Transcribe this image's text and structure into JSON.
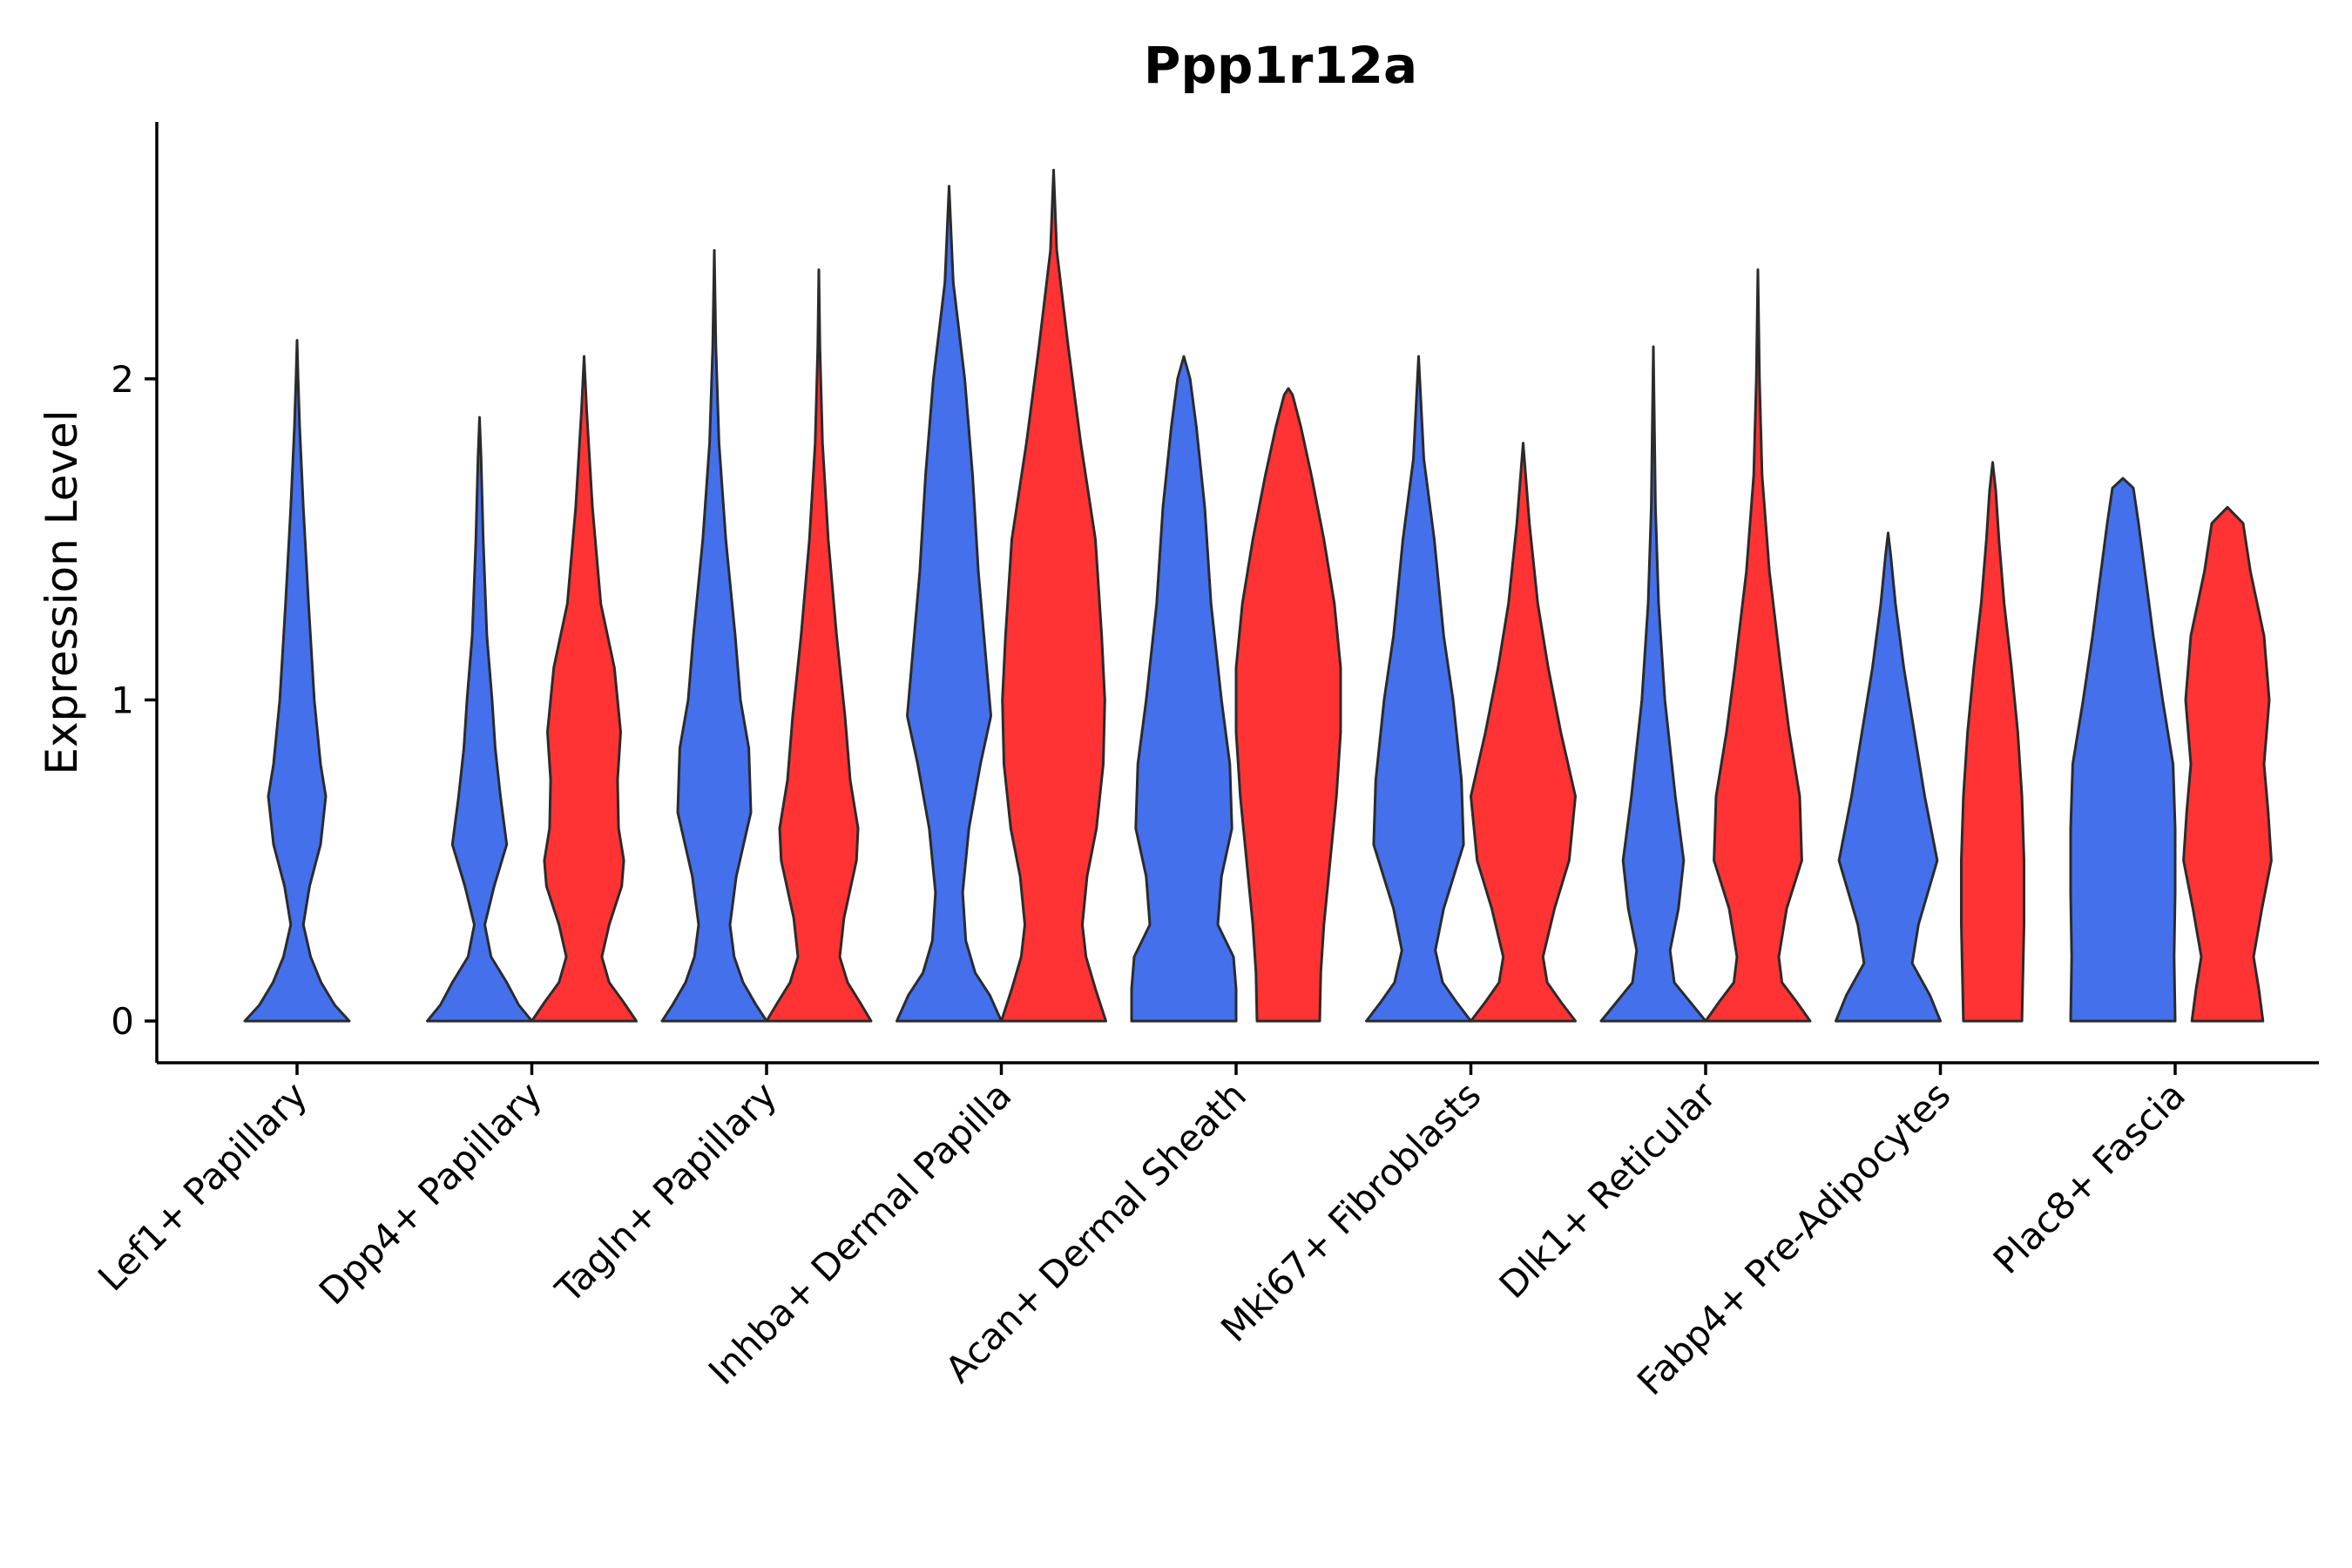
{
  "chart_data": {
    "type": "violin",
    "title": "Ppp1r12a",
    "xlabel": "",
    "ylabel": "Expression Level",
    "ylim": [
      -0.13,
      2.8
    ],
    "yticks": [
      0,
      1,
      2
    ],
    "grid": false,
    "legend": "none",
    "colors": {
      "blue": "#4470EC",
      "red": "#FF3333"
    },
    "categories": [
      "Lef1+ Papillary",
      "Dpp4+ Papillary",
      "Tagln+ Papillary",
      "Inhba+ Dermal Papilla",
      "Acan+ Dermal Sheath",
      "Mki67+ Fibroblasts",
      "Dlk1+ Reticular",
      "Fabp4+ Pre-Adipocytes",
      "Plac8+ Fascia"
    ],
    "series": [
      {
        "name": "blue",
        "color": "#4470EC",
        "max": [
          2.12,
          1.88,
          2.4,
          2.6,
          2.07,
          2.07,
          2.1,
          1.52,
          1.69
        ],
        "density": [
          [
            [
              0,
              1.0
            ],
            [
              0.05,
              0.72
            ],
            [
              0.12,
              0.46
            ],
            [
              0.2,
              0.26
            ],
            [
              0.3,
              0.12
            ],
            [
              0.42,
              0.24
            ],
            [
              0.55,
              0.45
            ],
            [
              0.7,
              0.55
            ],
            [
              0.8,
              0.45
            ],
            [
              1.0,
              0.33
            ],
            [
              1.3,
              0.22
            ],
            [
              1.6,
              0.12
            ],
            [
              1.85,
              0.05
            ],
            [
              2.0,
              0.02
            ],
            [
              2.12,
              0
            ]
          ],
          [
            [
              0,
              1.0
            ],
            [
              0.05,
              0.75
            ],
            [
              0.12,
              0.52
            ],
            [
              0.2,
              0.22
            ],
            [
              0.3,
              0.1
            ],
            [
              0.42,
              0.28
            ],
            [
              0.55,
              0.52
            ],
            [
              0.7,
              0.4
            ],
            [
              0.85,
              0.3
            ],
            [
              1.0,
              0.24
            ],
            [
              1.2,
              0.14
            ],
            [
              1.5,
              0.07
            ],
            [
              1.75,
              0.03
            ],
            [
              1.88,
              0
            ]
          ],
          [
            [
              0,
              1.0
            ],
            [
              0.05,
              0.8
            ],
            [
              0.12,
              0.55
            ],
            [
              0.2,
              0.38
            ],
            [
              0.3,
              0.3
            ],
            [
              0.45,
              0.42
            ],
            [
              0.65,
              0.7
            ],
            [
              0.85,
              0.66
            ],
            [
              1.0,
              0.5
            ],
            [
              1.2,
              0.4
            ],
            [
              1.5,
              0.22
            ],
            [
              1.8,
              0.09
            ],
            [
              2.1,
              0.03
            ],
            [
              2.4,
              0
            ]
          ],
          [
            [
              0,
              1.0
            ],
            [
              0.08,
              0.78
            ],
            [
              0.15,
              0.5
            ],
            [
              0.25,
              0.32
            ],
            [
              0.4,
              0.26
            ],
            [
              0.6,
              0.38
            ],
            [
              0.8,
              0.6
            ],
            [
              0.95,
              0.8
            ],
            [
              1.1,
              0.72
            ],
            [
              1.4,
              0.56
            ],
            [
              1.7,
              0.45
            ],
            [
              2.0,
              0.3
            ],
            [
              2.3,
              0.08
            ],
            [
              2.6,
              0
            ]
          ],
          [
            [
              0,
              1.0
            ],
            [
              0.1,
              1.0
            ],
            [
              0.2,
              0.95
            ],
            [
              0.3,
              0.65
            ],
            [
              0.45,
              0.72
            ],
            [
              0.6,
              0.92
            ],
            [
              0.8,
              0.88
            ],
            [
              1.0,
              0.72
            ],
            [
              1.3,
              0.52
            ],
            [
              1.6,
              0.4
            ],
            [
              1.85,
              0.24
            ],
            [
              2.0,
              0.12
            ],
            [
              2.07,
              0
            ]
          ],
          [
            [
              0,
              1.0
            ],
            [
              0.06,
              0.72
            ],
            [
              0.12,
              0.46
            ],
            [
              0.22,
              0.32
            ],
            [
              0.35,
              0.48
            ],
            [
              0.55,
              0.86
            ],
            [
              0.75,
              0.82
            ],
            [
              1.0,
              0.66
            ],
            [
              1.2,
              0.48
            ],
            [
              1.5,
              0.3
            ],
            [
              1.75,
              0.1
            ],
            [
              2.07,
              0
            ]
          ],
          [
            [
              0,
              1.0
            ],
            [
              0.06,
              0.7
            ],
            [
              0.12,
              0.4
            ],
            [
              0.22,
              0.32
            ],
            [
              0.35,
              0.48
            ],
            [
              0.5,
              0.58
            ],
            [
              0.7,
              0.42
            ],
            [
              1.0,
              0.22
            ],
            [
              1.3,
              0.1
            ],
            [
              1.6,
              0.04
            ],
            [
              2.1,
              0
            ]
          ],
          [
            [
              0,
              1.0
            ],
            [
              0.08,
              0.8
            ],
            [
              0.18,
              0.46
            ],
            [
              0.3,
              0.58
            ],
            [
              0.5,
              0.94
            ],
            [
              0.7,
              0.7
            ],
            [
              0.9,
              0.5
            ],
            [
              1.1,
              0.3
            ],
            [
              1.3,
              0.14
            ],
            [
              1.45,
              0.05
            ],
            [
              1.52,
              0
            ]
          ],
          [
            [
              0,
              1.0
            ],
            [
              0.2,
              0.98
            ],
            [
              0.4,
              1.0
            ],
            [
              0.6,
              1.0
            ],
            [
              0.8,
              0.96
            ],
            [
              1.0,
              0.76
            ],
            [
              1.2,
              0.58
            ],
            [
              1.4,
              0.42
            ],
            [
              1.55,
              0.3
            ],
            [
              1.66,
              0.2
            ],
            [
              1.69,
              0
            ]
          ]
        ]
      },
      {
        "name": "red",
        "color": "#FF3333",
        "max": [
          null,
          2.07,
          2.34,
          2.65,
          1.97,
          1.8,
          2.34,
          1.74,
          1.6
        ],
        "density": [
          [],
          [
            [
              0,
              1.0
            ],
            [
              0.06,
              0.75
            ],
            [
              0.12,
              0.48
            ],
            [
              0.2,
              0.34
            ],
            [
              0.3,
              0.48
            ],
            [
              0.42,
              0.72
            ],
            [
              0.5,
              0.76
            ],
            [
              0.6,
              0.66
            ],
            [
              0.75,
              0.64
            ],
            [
              0.9,
              0.7
            ],
            [
              1.1,
              0.58
            ],
            [
              1.3,
              0.32
            ],
            [
              1.6,
              0.16
            ],
            [
              1.9,
              0.05
            ],
            [
              2.07,
              0
            ]
          ],
          [
            [
              0,
              1.0
            ],
            [
              0.06,
              0.78
            ],
            [
              0.12,
              0.55
            ],
            [
              0.2,
              0.4
            ],
            [
              0.32,
              0.48
            ],
            [
              0.5,
              0.72
            ],
            [
              0.6,
              0.75
            ],
            [
              0.75,
              0.6
            ],
            [
              0.95,
              0.5
            ],
            [
              1.2,
              0.34
            ],
            [
              1.5,
              0.18
            ],
            [
              1.8,
              0.07
            ],
            [
              2.1,
              0.02
            ],
            [
              2.34,
              0
            ]
          ],
          [
            [
              0,
              1.0
            ],
            [
              0.1,
              0.8
            ],
            [
              0.2,
              0.62
            ],
            [
              0.3,
              0.55
            ],
            [
              0.45,
              0.64
            ],
            [
              0.6,
              0.82
            ],
            [
              0.8,
              0.95
            ],
            [
              1.0,
              0.98
            ],
            [
              1.2,
              0.92
            ],
            [
              1.5,
              0.8
            ],
            [
              1.8,
              0.52
            ],
            [
              2.1,
              0.28
            ],
            [
              2.4,
              0.06
            ],
            [
              2.65,
              0
            ]
          ],
          [
            [
              0,
              0.6
            ],
            [
              0.15,
              0.62
            ],
            [
              0.3,
              0.68
            ],
            [
              0.5,
              0.8
            ],
            [
              0.7,
              0.92
            ],
            [
              0.9,
              1.0
            ],
            [
              1.1,
              1.0
            ],
            [
              1.3,
              0.88
            ],
            [
              1.5,
              0.68
            ],
            [
              1.7,
              0.44
            ],
            [
              1.85,
              0.24
            ],
            [
              1.95,
              0.08
            ],
            [
              1.97,
              0
            ]
          ],
          [
            [
              0,
              1.0
            ],
            [
              0.06,
              0.72
            ],
            [
              0.12,
              0.46
            ],
            [
              0.2,
              0.38
            ],
            [
              0.35,
              0.6
            ],
            [
              0.5,
              0.88
            ],
            [
              0.7,
              1.0
            ],
            [
              0.9,
              0.72
            ],
            [
              1.1,
              0.48
            ],
            [
              1.3,
              0.28
            ],
            [
              1.55,
              0.12
            ],
            [
              1.8,
              0
            ]
          ],
          [
            [
              0,
              1.0
            ],
            [
              0.06,
              0.74
            ],
            [
              0.12,
              0.46
            ],
            [
              0.2,
              0.4
            ],
            [
              0.35,
              0.55
            ],
            [
              0.5,
              0.84
            ],
            [
              0.7,
              0.8
            ],
            [
              0.9,
              0.6
            ],
            [
              1.1,
              0.44
            ],
            [
              1.4,
              0.22
            ],
            [
              1.7,
              0.08
            ],
            [
              2.0,
              0.03
            ],
            [
              2.34,
              0
            ]
          ],
          [
            [
              0,
              0.56
            ],
            [
              0.15,
              0.58
            ],
            [
              0.3,
              0.6
            ],
            [
              0.5,
              0.6
            ],
            [
              0.7,
              0.56
            ],
            [
              0.9,
              0.48
            ],
            [
              1.1,
              0.36
            ],
            [
              1.3,
              0.22
            ],
            [
              1.5,
              0.12
            ],
            [
              1.65,
              0.06
            ],
            [
              1.74,
              0
            ]
          ],
          [
            [
              0,
              0.68
            ],
            [
              0.1,
              0.6
            ],
            [
              0.2,
              0.5
            ],
            [
              0.35,
              0.66
            ],
            [
              0.5,
              0.84
            ],
            [
              0.65,
              0.78
            ],
            [
              0.8,
              0.7
            ],
            [
              1.0,
              0.8
            ],
            [
              1.2,
              0.7
            ],
            [
              1.4,
              0.44
            ],
            [
              1.55,
              0.3
            ],
            [
              1.6,
              0
            ]
          ]
        ]
      }
    ]
  }
}
